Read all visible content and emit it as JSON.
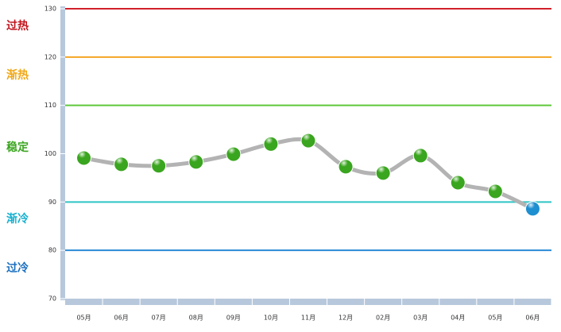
{
  "chart_data": {
    "type": "line",
    "categories": [
      "05月",
      "06月",
      "07月",
      "08月",
      "09月",
      "10月",
      "11月",
      "12月",
      "02月",
      "03月",
      "04月",
      "05月",
      "06月"
    ],
    "series": [
      {
        "color": "#b3b3b3",
        "values": [
          99.1,
          97.8,
          97.5,
          98.3,
          99.9,
          102,
          102.7,
          97.3,
          96,
          99.6,
          94,
          92.2,
          88.6
        ],
        "marker_colors": [
          "#3aa51f",
          "#3aa51f",
          "#3aa51f",
          "#3aa51f",
          "#3aa51f",
          "#3aa51f",
          "#3aa51f",
          "#3aa51f",
          "#3aa51f",
          "#3aa51f",
          "#3aa51f",
          "#3aa51f",
          "#1e8fd0"
        ]
      }
    ],
    "ylim": [
      70,
      130
    ],
    "yticks": [
      70,
      80,
      90,
      100,
      110,
      120,
      130
    ],
    "reference_lines": [
      {
        "value": 130,
        "color": "#d0202a"
      },
      {
        "value": 120,
        "color": "#f5a623"
      },
      {
        "value": 110,
        "color": "#5ec83a"
      },
      {
        "value": 90,
        "color": "#2ec4c4"
      },
      {
        "value": 80,
        "color": "#2a8ad6"
      }
    ],
    "zones": [
      {
        "label": "过热",
        "color": "#c0141c"
      },
      {
        "label": "渐热",
        "color": "#f0a818"
      },
      {
        "label": "稳定",
        "color": "#3aa51f"
      },
      {
        "label": "渐冷",
        "color": "#16b0d0"
      },
      {
        "label": "过冷",
        "color": "#1a6fc0"
      }
    ]
  }
}
